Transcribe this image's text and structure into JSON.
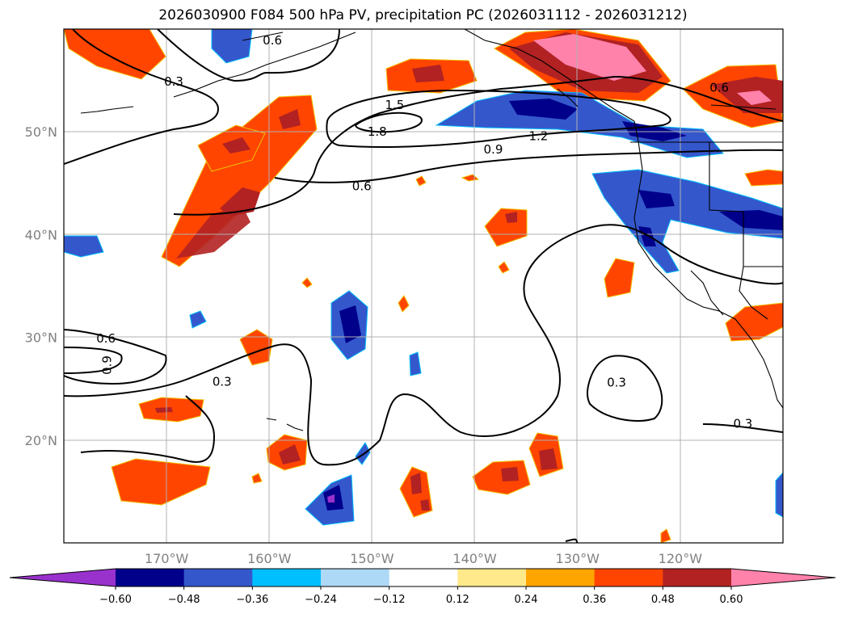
{
  "title": "2026030900 F084 500 hPa PV, precipitation PC (2026031112 - 2026031212)",
  "map": {
    "lon_range": [
      -180,
      -110
    ],
    "lat_range": [
      10,
      60
    ],
    "lat_ticks": [
      {
        "lat": 50,
        "label": "50°N"
      },
      {
        "lat": 40,
        "label": "40°N"
      },
      {
        "lat": 30,
        "label": "30°N"
      },
      {
        "lat": 20,
        "label": "20°N"
      }
    ],
    "lon_ticks": [
      {
        "lon": -170,
        "label": "170°W"
      },
      {
        "lon": -160,
        "label": "160°W"
      },
      {
        "lon": -150,
        "label": "150°W"
      },
      {
        "lon": -140,
        "label": "140°W"
      },
      {
        "lon": -130,
        "label": "130°W"
      },
      {
        "lon": -120,
        "label": "120°W"
      }
    ],
    "grid": true
  },
  "pv_contour_labels": [
    {
      "text": "0.6",
      "lon": -175.9,
      "lat": 29.9
    },
    {
      "text": "0.9",
      "lon": -175.8,
      "lat": 27.3,
      "rotate": -90
    },
    {
      "text": "0.3",
      "lon": -164.6,
      "lat": 25.7
    },
    {
      "text": "0.3",
      "lon": -169.3,
      "lat": 54.9
    },
    {
      "text": "0.6",
      "lon": -159.7,
      "lat": 58.9
    },
    {
      "text": "1.5",
      "lon": -147.8,
      "lat": 52.6
    },
    {
      "text": "1.8",
      "lon": -149.5,
      "lat": 50.0
    },
    {
      "text": "0.9",
      "lon": -138.2,
      "lat": 48.3
    },
    {
      "text": "1.2",
      "lon": -133.8,
      "lat": 49.6
    },
    {
      "text": "0.6",
      "lon": -151.0,
      "lat": 44.7
    },
    {
      "text": "0.6",
      "lon": -116.2,
      "lat": 54.3
    },
    {
      "text": "0.3",
      "lon": -126.2,
      "lat": 25.6
    },
    {
      "text": "0.3",
      "lon": -113.9,
      "lat": 21.6
    }
  ],
  "colorbar": {
    "ticks": [
      "−0.60",
      "−0.48",
      "−0.36",
      "−0.24",
      "−0.12",
      "0.12",
      "0.24",
      "0.36",
      "0.48",
      "0.60"
    ],
    "colors": [
      "#9932cc",
      "#00008b",
      "#3557cc",
      "#00bfff",
      "#add8f6",
      "#ffffff",
      "#ffe98a",
      "#ffa500",
      "#ff4500",
      "#b22222",
      "#ff82ab",
      "#ff82ab"
    ]
  }
}
